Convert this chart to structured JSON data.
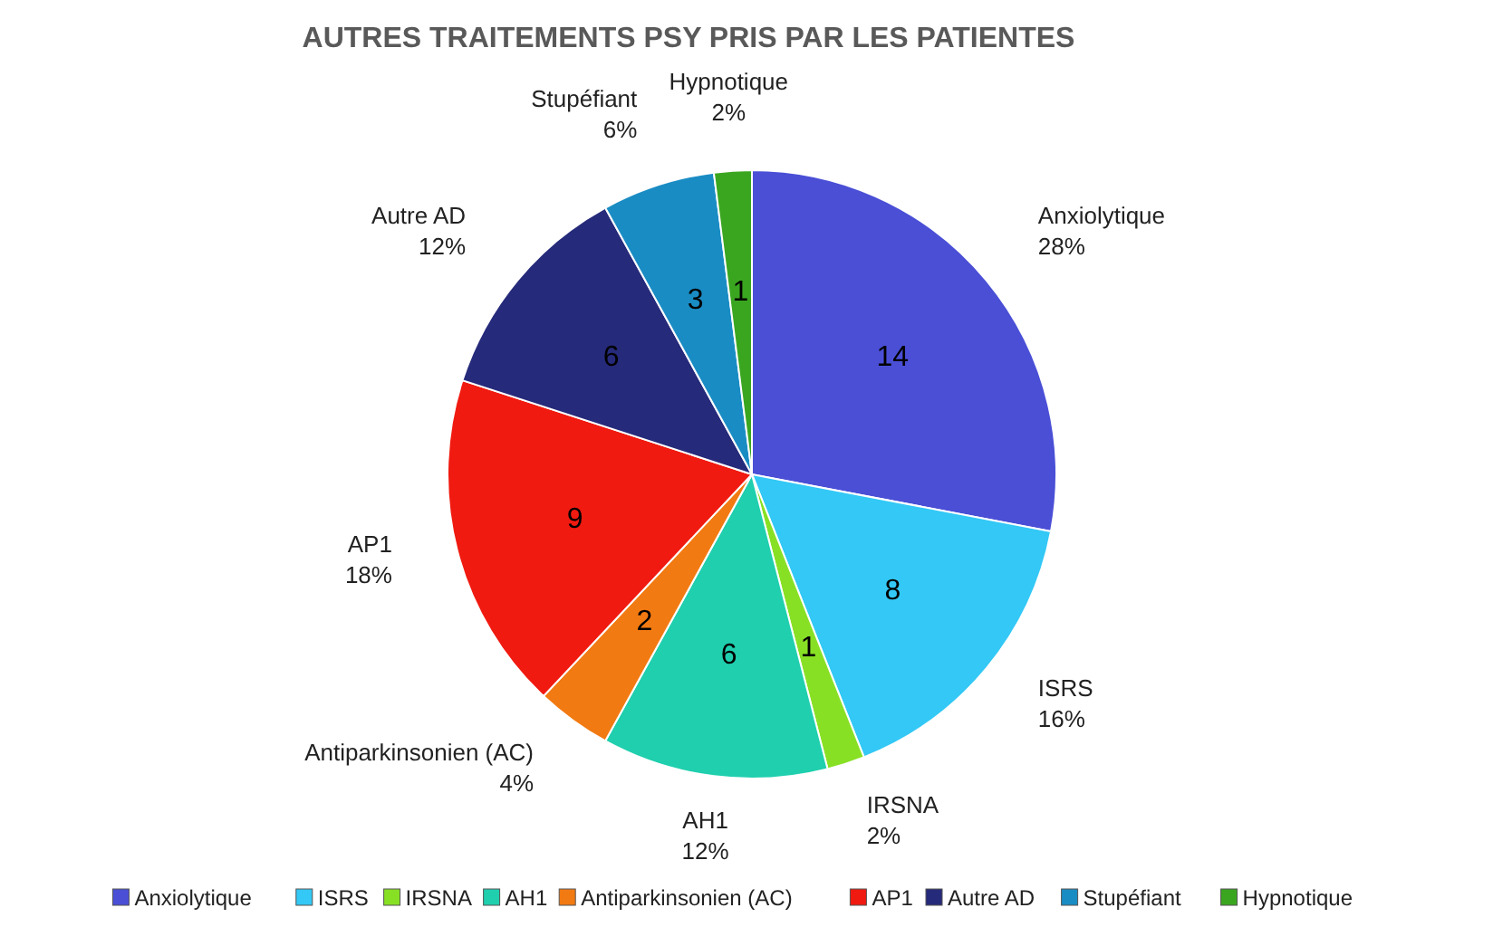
{
  "chart_data": {
    "type": "pie",
    "title": "AUTRES TRAITEMENTS PSY PRIS PAR LES PATIENTES",
    "categories": [
      "Anxiolytique",
      "ISRS",
      "IRSNA",
      "AH1",
      "Antiparkinsonien (AC)",
      "AP1",
      "Autre AD",
      "Stupéfiant",
      "Hypnotique"
    ],
    "values": [
      14,
      8,
      1,
      6,
      2,
      9,
      6,
      3,
      1
    ],
    "colors": [
      "#4a4fd6",
      "#33c8f5",
      "#88e025",
      "#1fcfae",
      "#f27a12",
      "#f01a10",
      "#262a7a",
      "#1a8cc4",
      "#3aa620"
    ],
    "data_labels": true,
    "annotations": [
      "28%",
      "16%",
      "2%",
      "12%",
      "4%",
      "18%",
      "12%",
      "6%",
      "2%"
    ],
    "legend": "bottom"
  }
}
